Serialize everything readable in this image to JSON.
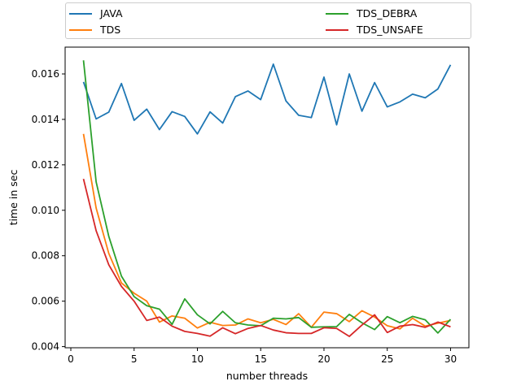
{
  "chart_data": {
    "type": "line",
    "title": "",
    "xlabel": "number threads",
    "ylabel": "time in sec",
    "xlim": [
      -0.45,
      31.45
    ],
    "ylim": [
      0.00395,
      0.01718
    ],
    "x_ticks": [
      0,
      5,
      10,
      15,
      20,
      25,
      30
    ],
    "y_ticks": [
      0.004,
      0.006,
      0.008,
      0.01,
      0.012,
      0.014,
      0.016
    ],
    "y_tick_labels": [
      "0.004",
      "0.006",
      "0.008",
      "0.010",
      "0.012",
      "0.014",
      "0.016"
    ],
    "grid": false,
    "legend": "top, above plot, two columns",
    "x": [
      1,
      2,
      3,
      4,
      5,
      6,
      7,
      8,
      9,
      10,
      11,
      12,
      13,
      14,
      15,
      16,
      17,
      18,
      19,
      20,
      21,
      22,
      23,
      24,
      25,
      26,
      27,
      28,
      29,
      30
    ],
    "series": [
      {
        "name": "JAVA",
        "color": "#1f77b4",
        "values": [
          0.01565,
          0.01402,
          0.01432,
          0.01558,
          0.01396,
          0.01445,
          0.01355,
          0.01434,
          0.01413,
          0.01336,
          0.01433,
          0.01384,
          0.015,
          0.01525,
          0.01487,
          0.01643,
          0.01481,
          0.01418,
          0.01408,
          0.01586,
          0.01376,
          0.016,
          0.01436,
          0.01562,
          0.01455,
          0.01477,
          0.01511,
          0.01495,
          0.01534,
          0.0164
        ]
      },
      {
        "name": "TDS",
        "color": "#ff7f0e",
        "values": [
          0.01336,
          0.0101,
          0.0081,
          0.0068,
          0.00635,
          0.006,
          0.00508,
          0.00535,
          0.00525,
          0.00482,
          0.00507,
          0.00493,
          0.00495,
          0.00522,
          0.00505,
          0.0052,
          0.00497,
          0.00545,
          0.00485,
          0.00552,
          0.00545,
          0.0051,
          0.00558,
          0.0053,
          0.00492,
          0.00478,
          0.00525,
          0.0049,
          0.00503,
          0.00515
        ]
      },
      {
        "name": "TDS_DEBRA",
        "color": "#2ca02c",
        "values": [
          0.0166,
          0.01125,
          0.00885,
          0.0071,
          0.0062,
          0.0058,
          0.00565,
          0.00498,
          0.0061,
          0.0054,
          0.005,
          0.00555,
          0.00505,
          0.00495,
          0.00492,
          0.00525,
          0.00522,
          0.00528,
          0.00485,
          0.00487,
          0.00488,
          0.00542,
          0.00505,
          0.00475,
          0.00532,
          0.00505,
          0.00533,
          0.00518,
          0.0046,
          0.0052
        ]
      },
      {
        "name": "TDS_UNSAFE",
        "color": "#d62728",
        "values": [
          0.01138,
          0.0091,
          0.0076,
          0.00665,
          0.006,
          0.00515,
          0.0053,
          0.0049,
          0.00467,
          0.00458,
          0.00446,
          0.00483,
          0.00457,
          0.0048,
          0.00493,
          0.00473,
          0.00461,
          0.00458,
          0.00458,
          0.00483,
          0.0048,
          0.00445,
          0.00495,
          0.0054,
          0.00462,
          0.0049,
          0.00497,
          0.00485,
          0.00508,
          0.00487
        ]
      }
    ]
  }
}
